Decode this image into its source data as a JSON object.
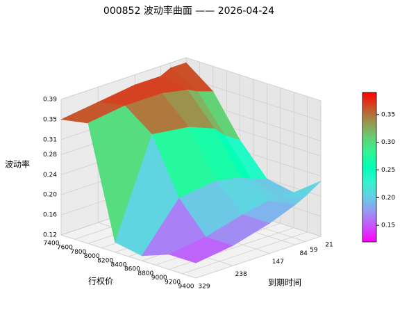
{
  "chart_data": {
    "type": "surface3d",
    "title": "000852 波动率曲面 —— 2026-04-24",
    "xlabel": "行权价",
    "ylabel": "到期时间",
    "zlabel": "波动率",
    "x": [
      7400,
      7800,
      8200,
      8600,
      9000,
      9400
    ],
    "y": [
      21,
      59,
      84,
      147,
      238,
      329
    ],
    "z": [
      [
        0.38,
        0.34,
        0.26,
        0.2,
        0.19,
        0.23
      ],
      [
        0.38,
        0.35,
        0.28,
        0.21,
        0.19,
        0.21
      ],
      [
        0.37,
        0.36,
        0.3,
        0.22,
        0.19,
        0.2
      ],
      [
        0.37,
        0.37,
        0.32,
        0.23,
        0.18,
        0.18
      ],
      [
        0.36,
        0.37,
        0.33,
        0.22,
        0.16,
        0.16
      ],
      [
        0.35,
        0.36,
        0.14,
        0.13,
        0.15,
        0.15
      ]
    ],
    "xlim": [
      7400,
      9400
    ],
    "xticks": [
      7400,
      7600,
      7800,
      8000,
      8200,
      8400,
      8600,
      8800,
      9000,
      9200,
      9400
    ],
    "ylim": [
      21,
      329
    ],
    "yticks": [
      21,
      59,
      84,
      147,
      238,
      329
    ],
    "zlim": [
      0.12,
      0.39
    ],
    "zticks": [
      0.12,
      0.16,
      {
        "value": 0.2,
        "label": "0.20"
      },
      0.24,
      0.28,
      0.31,
      0.35,
      0.39
    ],
    "colormap": "rainbow",
    "clim": [
      0.12,
      0.39
    ],
    "colorbar_ticks": [
      0.15,
      {
        "value": 0.2,
        "label": "0.20"
      },
      0.25,
      {
        "value": 0.3,
        "label": "0.30"
      },
      0.35
    ],
    "grid": true
  }
}
